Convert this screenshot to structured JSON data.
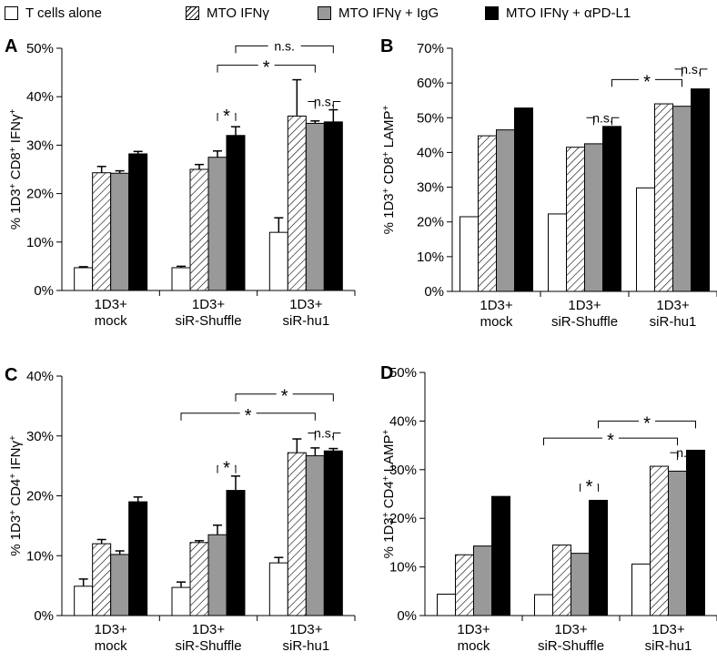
{
  "legend": {
    "items": [
      {
        "label": "T cells alone",
        "fill": "#ffffff"
      },
      {
        "label": "MTO IFNγ",
        "fill": "hatch"
      },
      {
        "label": "MTO IFNγ + IgG",
        "fill": "#999999"
      },
      {
        "label": "MTO IFNγ + αPD-L1",
        "fill": "#000000"
      }
    ]
  },
  "colors": {
    "t_cells_alone": "#ffffff",
    "mto_ifn": "hatch",
    "mto_ifn_igg": "#999999",
    "mto_ifn_apdl1": "#000000"
  },
  "chart_data": [
    {
      "panel": "A",
      "type": "bar",
      "ylabel_parts": [
        "% 1D3",
        "+",
        " CD8",
        "+",
        " IFNγ",
        "+"
      ],
      "ylim": [
        0,
        50
      ],
      "yticks": [
        0,
        10,
        20,
        30,
        40,
        50
      ],
      "tick_suffix": "%",
      "categories": [
        [
          "1D3+",
          "mock"
        ],
        [
          "1D3+",
          "siR-Shuffle"
        ],
        [
          "1D3+",
          "siR-hu1"
        ]
      ],
      "series": [
        {
          "name": "T cells alone",
          "values": [
            4.7,
            4.7,
            12
          ],
          "errors": [
            0.2,
            0.3,
            3
          ]
        },
        {
          "name": "MTO IFNγ",
          "values": [
            24.3,
            25,
            36
          ],
          "errors": [
            1.3,
            1,
            7.5
          ]
        },
        {
          "name": "MTO IFNγ + IgG",
          "values": [
            24.2,
            27.5,
            34.5
          ],
          "errors": [
            0.5,
            1.3,
            0.5
          ]
        },
        {
          "name": "MTO IFNγ + αPD-L1",
          "values": [
            28.2,
            32,
            34.8
          ],
          "errors": [
            0.5,
            1.8,
            2.5
          ]
        }
      ],
      "brackets": [
        {
          "g1": 1,
          "b1": 3,
          "g2": 2,
          "b2": 3,
          "y": 50.5,
          "label": "n.s."
        },
        {
          "g1": 1,
          "b1": 2,
          "g2": 2,
          "b2": 2,
          "y": 46.5,
          "label": "*"
        },
        {
          "g1": 1,
          "b1": 2,
          "g2": 1,
          "b2": 3,
          "y": 36.5,
          "label": "*"
        },
        {
          "g1": 2,
          "b1": 2,
          "g2": 2,
          "b2": 3,
          "y": 39,
          "label": "n.s."
        }
      ]
    },
    {
      "panel": "B",
      "type": "bar",
      "ylabel_parts": [
        "% 1D3",
        "+",
        " CD8",
        "+",
        " LAMP",
        "+"
      ],
      "ylim": [
        0,
        70
      ],
      "yticks": [
        0,
        10,
        20,
        30,
        40,
        50,
        60,
        70
      ],
      "tick_suffix": "%",
      "categories": [
        [
          "1D3+",
          "mock"
        ],
        [
          "1D3+",
          "siR-Shuffle"
        ],
        [
          "1D3+",
          "siR-hu1"
        ]
      ],
      "series": [
        {
          "name": "T cells alone",
          "values": [
            21.5,
            22.3,
            29.8
          ]
        },
        {
          "name": "MTO IFNγ",
          "values": [
            44.8,
            41.5,
            54
          ]
        },
        {
          "name": "MTO IFNγ + IgG",
          "values": [
            46.5,
            42.5,
            53.3
          ]
        },
        {
          "name": "MTO IFNγ + αPD-L1",
          "values": [
            52.8,
            47.5,
            58.3
          ]
        }
      ],
      "brackets": [
        {
          "g1": 1,
          "b1": 3,
          "g2": 2,
          "b2": 2,
          "y": 61,
          "label": "*"
        },
        {
          "g1": 1,
          "b1": 2,
          "g2": 1,
          "b2": 3,
          "y": 50,
          "label": "n.s."
        },
        {
          "g1": 2,
          "b1": 2,
          "g2": 2,
          "b2": 3,
          "y": 64,
          "label": "n.s."
        }
      ]
    },
    {
      "panel": "C",
      "type": "bar",
      "ylabel_parts": [
        "% 1D3",
        "+",
        " CD4",
        "+",
        " IFNγ",
        "+"
      ],
      "ylim": [
        0,
        40
      ],
      "yticks": [
        0,
        10,
        20,
        30,
        40
      ],
      "tick_suffix": "%",
      "categories": [
        [
          "1D3+",
          "mock"
        ],
        [
          "1D3+",
          "siR-Shuffle"
        ],
        [
          "1D3+",
          "siR-hu1"
        ]
      ],
      "series": [
        {
          "name": "T cells alone",
          "values": [
            4.9,
            4.7,
            8.8
          ],
          "errors": [
            1.2,
            0.9,
            0.9
          ]
        },
        {
          "name": "MTO IFNγ",
          "values": [
            12,
            12.2,
            27.2
          ],
          "errors": [
            0.7,
            0.3,
            2.3
          ]
        },
        {
          "name": "MTO IFNγ + IgG",
          "values": [
            10.2,
            13.5,
            26.7
          ],
          "errors": [
            0.6,
            1.6,
            1.3
          ]
        },
        {
          "name": "MTO IFNγ + αPD-L1",
          "values": [
            19,
            20.9,
            27.5
          ],
          "errors": [
            0.8,
            2.4,
            0.4
          ]
        }
      ],
      "brackets": [
        {
          "g1": 1,
          "b1": 3,
          "g2": 2,
          "b2": 3,
          "y": 37,
          "label": "*"
        },
        {
          "g1": 1,
          "b1": 0,
          "g2": 2,
          "b2": 2,
          "y": 33.8,
          "label": "*"
        },
        {
          "g1": 1,
          "b1": 2,
          "g2": 1,
          "b2": 3,
          "y": 25,
          "label": "*"
        },
        {
          "g1": 2,
          "b1": 2,
          "g2": 2,
          "b2": 3,
          "y": 30.5,
          "label": "n.s."
        }
      ]
    },
    {
      "panel": "D",
      "type": "bar",
      "ylabel_parts": [
        "% 1D3",
        "+",
        " CD4",
        "+",
        " LAMP",
        "+"
      ],
      "ylim": [
        0,
        50
      ],
      "yticks": [
        0,
        10,
        20,
        30,
        40,
        50
      ],
      "tick_suffix": "%",
      "categories": [
        [
          "1D3+",
          "mock"
        ],
        [
          "1D3+",
          "siR-Shuffle"
        ],
        [
          "1D3+",
          "siR-hu1"
        ]
      ],
      "series": [
        {
          "name": "T cells alone",
          "values": [
            4.4,
            4.3,
            10.6
          ]
        },
        {
          "name": "MTO IFNγ",
          "values": [
            12.5,
            14.5,
            30.7
          ]
        },
        {
          "name": "MTO IFNγ + IgG",
          "values": [
            14.3,
            12.8,
            29.7
          ]
        },
        {
          "name": "MTO IFNγ + αPD-L1",
          "values": [
            24.5,
            23.7,
            34
          ]
        }
      ],
      "brackets": [
        {
          "g1": 1,
          "b1": 3,
          "g2": 2,
          "b2": 3,
          "y": 40,
          "label": "*"
        },
        {
          "g1": 1,
          "b1": 0,
          "g2": 2,
          "b2": 2,
          "y": 36.5,
          "label": "*"
        },
        {
          "g1": 1,
          "b1": 2,
          "g2": 1,
          "b2": 3,
          "y": 27,
          "label": "*"
        },
        {
          "g1": 2,
          "b1": 2,
          "g2": 2,
          "b2": 3,
          "y": 33.5,
          "label": "n.s."
        }
      ]
    }
  ]
}
